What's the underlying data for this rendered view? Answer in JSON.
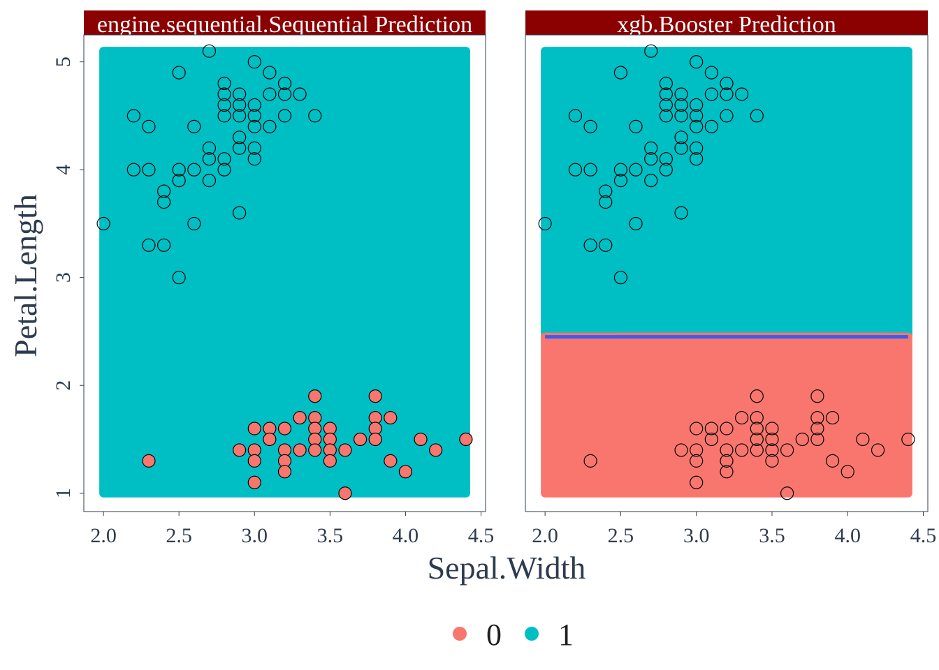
{
  "colors": {
    "class0": "#F8766D",
    "class1": "#00BFC4",
    "strip": "#8B0000",
    "boundary": "#3A5CF0",
    "axis": "#2e3b4e"
  },
  "chart_data": {
    "type": "scatter",
    "xlabel": "Sepal.Width",
    "ylabel": "Petal.Length",
    "xlim": [
      1.87,
      4.53
    ],
    "ylim": [
      0.83,
      5.25
    ],
    "x_ticks": [
      2.0,
      2.5,
      3.0,
      3.5,
      4.0,
      4.5
    ],
    "x_tick_labels": [
      "2.0",
      "2.5",
      "3.0",
      "3.5",
      "4.0",
      "4.5"
    ],
    "y_ticks": [
      1,
      2,
      3,
      4,
      5
    ],
    "y_tick_labels": [
      "1",
      "2",
      "3",
      "4",
      "5"
    ],
    "legend": {
      "position": "bottom",
      "entries": [
        {
          "label": "0",
          "class": 0
        },
        {
          "label": "1",
          "class": 1
        }
      ]
    },
    "grid": false,
    "panels": [
      {
        "title": "engine.sequential.Sequential  Prediction",
        "regions": [
          {
            "class": 1,
            "x": [
              2.0,
              4.4
            ],
            "y": [
              1.0,
              5.1
            ]
          }
        ],
        "boundary_y": null,
        "point_fill": "by_class"
      },
      {
        "title": "xgb.Booster  Prediction",
        "regions": [
          {
            "class": 1,
            "x": [
              2.0,
              4.4
            ],
            "y": [
              2.45,
              5.1
            ]
          },
          {
            "class": 0,
            "x": [
              2.0,
              4.4
            ],
            "y": [
              1.0,
              2.45
            ]
          }
        ],
        "boundary_y": 2.45,
        "point_fill": "none"
      }
    ],
    "points": [
      {
        "x": 2.0,
        "y": 3.5,
        "class": 1
      },
      {
        "x": 2.2,
        "y": 4.5,
        "class": 1
      },
      {
        "x": 2.2,
        "y": 4.0,
        "class": 1
      },
      {
        "x": 2.3,
        "y": 4.4,
        "class": 1
      },
      {
        "x": 2.3,
        "y": 4.0,
        "class": 1
      },
      {
        "x": 2.3,
        "y": 3.3,
        "class": 1
      },
      {
        "x": 2.3,
        "y": 1.3,
        "class": 0
      },
      {
        "x": 2.4,
        "y": 3.8,
        "class": 1
      },
      {
        "x": 2.4,
        "y": 3.7,
        "class": 1
      },
      {
        "x": 2.4,
        "y": 3.3,
        "class": 1
      },
      {
        "x": 2.5,
        "y": 4.9,
        "class": 1
      },
      {
        "x": 2.5,
        "y": 4.0,
        "class": 1
      },
      {
        "x": 2.5,
        "y": 3.9,
        "class": 1
      },
      {
        "x": 2.5,
        "y": 3.0,
        "class": 1
      },
      {
        "x": 2.6,
        "y": 4.4,
        "class": 1
      },
      {
        "x": 2.6,
        "y": 4.0,
        "class": 1
      },
      {
        "x": 2.6,
        "y": 3.5,
        "class": 1
      },
      {
        "x": 2.7,
        "y": 5.1,
        "class": 1
      },
      {
        "x": 2.7,
        "y": 4.2,
        "class": 1
      },
      {
        "x": 2.7,
        "y": 4.1,
        "class": 1
      },
      {
        "x": 2.7,
        "y": 3.9,
        "class": 1
      },
      {
        "x": 2.8,
        "y": 4.8,
        "class": 1
      },
      {
        "x": 2.8,
        "y": 4.7,
        "class": 1
      },
      {
        "x": 2.8,
        "y": 4.6,
        "class": 1
      },
      {
        "x": 2.8,
        "y": 4.5,
        "class": 1
      },
      {
        "x": 2.8,
        "y": 4.1,
        "class": 1
      },
      {
        "x": 2.8,
        "y": 4.0,
        "class": 1
      },
      {
        "x": 2.9,
        "y": 4.7,
        "class": 1
      },
      {
        "x": 2.9,
        "y": 4.6,
        "class": 1
      },
      {
        "x": 2.9,
        "y": 4.5,
        "class": 1
      },
      {
        "x": 2.9,
        "y": 4.3,
        "class": 1
      },
      {
        "x": 2.9,
        "y": 4.2,
        "class": 1
      },
      {
        "x": 2.9,
        "y": 3.6,
        "class": 1
      },
      {
        "x": 2.9,
        "y": 1.4,
        "class": 0
      },
      {
        "x": 3.0,
        "y": 5.0,
        "class": 1
      },
      {
        "x": 3.0,
        "y": 4.6,
        "class": 1
      },
      {
        "x": 3.0,
        "y": 4.5,
        "class": 1
      },
      {
        "x": 3.0,
        "y": 4.4,
        "class": 1
      },
      {
        "x": 3.0,
        "y": 4.2,
        "class": 1
      },
      {
        "x": 3.0,
        "y": 4.1,
        "class": 1
      },
      {
        "x": 3.0,
        "y": 1.6,
        "class": 0
      },
      {
        "x": 3.0,
        "y": 1.4,
        "class": 0
      },
      {
        "x": 3.0,
        "y": 1.3,
        "class": 0
      },
      {
        "x": 3.0,
        "y": 1.1,
        "class": 0
      },
      {
        "x": 3.1,
        "y": 4.9,
        "class": 1
      },
      {
        "x": 3.1,
        "y": 4.7,
        "class": 1
      },
      {
        "x": 3.1,
        "y": 4.4,
        "class": 1
      },
      {
        "x": 3.1,
        "y": 1.6,
        "class": 0
      },
      {
        "x": 3.1,
        "y": 1.5,
        "class": 0
      },
      {
        "x": 3.2,
        "y": 4.8,
        "class": 1
      },
      {
        "x": 3.2,
        "y": 4.7,
        "class": 1
      },
      {
        "x": 3.2,
        "y": 4.5,
        "class": 1
      },
      {
        "x": 3.2,
        "y": 1.6,
        "class": 0
      },
      {
        "x": 3.2,
        "y": 1.4,
        "class": 0
      },
      {
        "x": 3.2,
        "y": 1.3,
        "class": 0
      },
      {
        "x": 3.2,
        "y": 1.2,
        "class": 0
      },
      {
        "x": 3.3,
        "y": 4.7,
        "class": 1
      },
      {
        "x": 3.3,
        "y": 1.7,
        "class": 0
      },
      {
        "x": 3.3,
        "y": 1.4,
        "class": 0
      },
      {
        "x": 3.4,
        "y": 4.5,
        "class": 1
      },
      {
        "x": 3.4,
        "y": 1.9,
        "class": 0
      },
      {
        "x": 3.4,
        "y": 1.7,
        "class": 0
      },
      {
        "x": 3.4,
        "y": 1.6,
        "class": 0
      },
      {
        "x": 3.4,
        "y": 1.5,
        "class": 0
      },
      {
        "x": 3.4,
        "y": 1.4,
        "class": 0
      },
      {
        "x": 3.5,
        "y": 1.6,
        "class": 0
      },
      {
        "x": 3.5,
        "y": 1.5,
        "class": 0
      },
      {
        "x": 3.5,
        "y": 1.4,
        "class": 0
      },
      {
        "x": 3.5,
        "y": 1.3,
        "class": 0
      },
      {
        "x": 3.6,
        "y": 1.4,
        "class": 0
      },
      {
        "x": 3.6,
        "y": 1.0,
        "class": 0
      },
      {
        "x": 3.7,
        "y": 1.5,
        "class": 0
      },
      {
        "x": 3.8,
        "y": 1.9,
        "class": 0
      },
      {
        "x": 3.8,
        "y": 1.7,
        "class": 0
      },
      {
        "x": 3.8,
        "y": 1.6,
        "class": 0
      },
      {
        "x": 3.8,
        "y": 1.5,
        "class": 0
      },
      {
        "x": 3.9,
        "y": 1.7,
        "class": 0
      },
      {
        "x": 3.9,
        "y": 1.3,
        "class": 0
      },
      {
        "x": 4.0,
        "y": 1.2,
        "class": 0
      },
      {
        "x": 4.1,
        "y": 1.5,
        "class": 0
      },
      {
        "x": 4.2,
        "y": 1.4,
        "class": 0
      },
      {
        "x": 4.4,
        "y": 1.5,
        "class": 0
      }
    ]
  }
}
